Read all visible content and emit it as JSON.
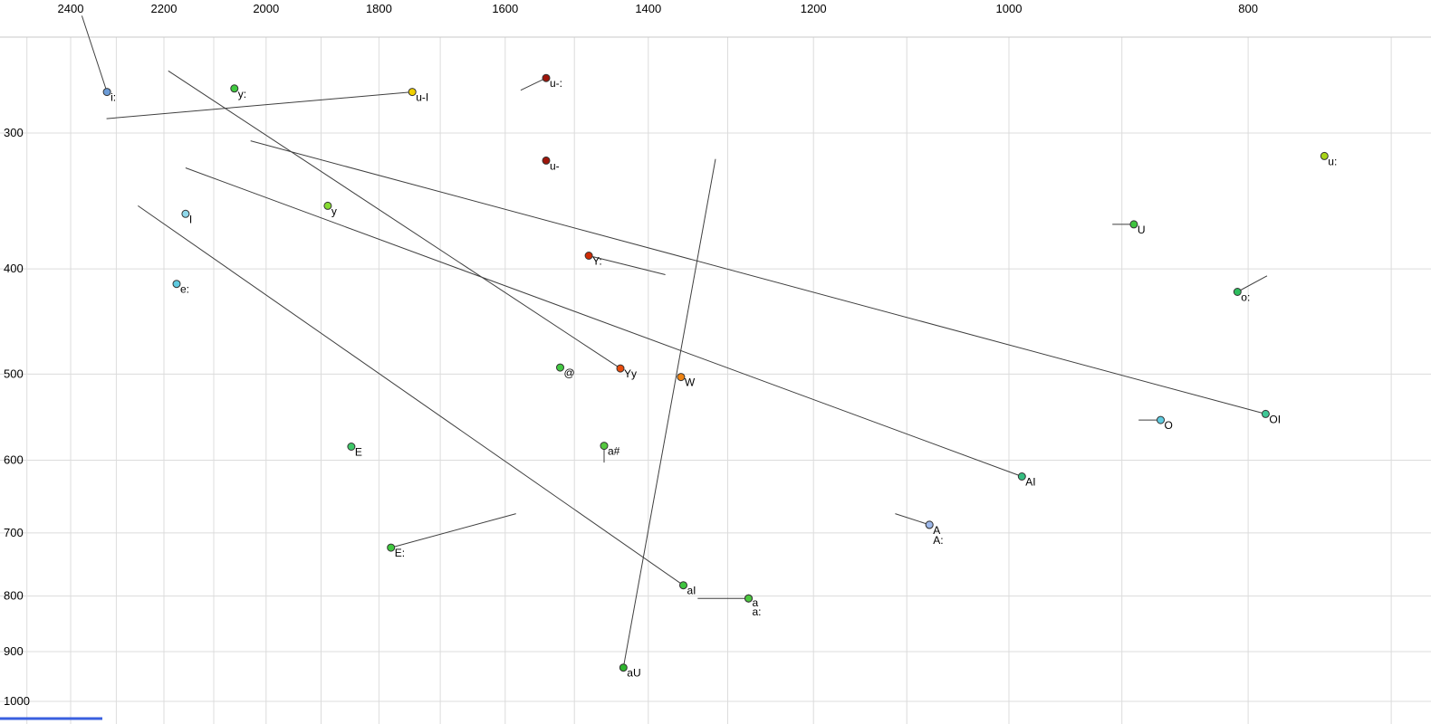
{
  "style": {
    "background": "#ffffff",
    "grid_color": "#dcdcdc",
    "border_color": "#c8c8c8",
    "segment_color": "#3f3f3f",
    "point_stroke": "#333333",
    "axis_text_color": "#000000",
    "bottom_bar_color": "#3a5fdf"
  },
  "bottom_bar": {
    "present": true
  },
  "chart_data": {
    "type": "scatter",
    "description": "Vowel formant plot: F2 (Hz) on reversed log x-axis, F1 (Hz) on reversed log y-axis; labelled vowel tokens (X-SAMPA style) with diphthong/outlier trajectory lines",
    "x_axis": {
      "tick_labels": [
        "2400",
        "2200",
        "2000",
        "1800",
        "1600",
        "1400",
        "1200",
        "1000",
        "800"
      ],
      "tick_values": [
        2400,
        2200,
        2000,
        1800,
        1600,
        1400,
        1200,
        1000,
        800
      ],
      "grid_from": 2500,
      "grid_to": 700,
      "grid_step": 100,
      "scale": "log",
      "reversed": true
    },
    "y_axis": {
      "tick_labels": [
        "300",
        "400",
        "500",
        "600",
        "700",
        "800",
        "900",
        "1000"
      ],
      "tick_values": [
        300,
        400,
        500,
        600,
        700,
        800,
        900,
        1000
      ],
      "grid_from": 300,
      "grid_to": 1000,
      "grid_step": 100,
      "scale": "log",
      "reversed": true
    },
    "points": [
      {
        "label": "i:",
        "f2": 2320,
        "f1": 275,
        "color": "#6b9bd6"
      },
      {
        "label": "y:",
        "f2": 2060,
        "f1": 273,
        "color": "#3fca3f"
      },
      {
        "label": "u-I",
        "f2": 1745,
        "f1": 275,
        "color": "#f0d000"
      },
      {
        "label": "u-:",
        "f2": 1540,
        "f1": 267,
        "color": "#9e150a"
      },
      {
        "label": "u-",
        "f2": 1540,
        "f1": 318,
        "color": "#9e150a"
      },
      {
        "label": "I",
        "f2": 2156,
        "f1": 356,
        "color": "#8fd8ea"
      },
      {
        "label": "y",
        "f2": 1888,
        "f1": 350,
        "color": "#86dc30"
      },
      {
        "label": "e:",
        "f2": 2174,
        "f1": 413,
        "color": "#5fcbe0"
      },
      {
        "label": "Y:",
        "f2": 1480,
        "f1": 389,
        "color": "#cf2b05"
      },
      {
        "label": "@",
        "f2": 1520,
        "f1": 493,
        "color": "#42c842"
      },
      {
        "label": "Yy",
        "f2": 1437,
        "f1": 494,
        "color": "#e84b0c"
      },
      {
        "label": "W",
        "f2": 1358,
        "f1": 503,
        "color": "#ee8312"
      },
      {
        "label": "U",
        "f2": 890,
        "f1": 364,
        "color": "#3fc43f"
      },
      {
        "label": "u:",
        "f2": 745,
        "f1": 315,
        "color": "#a8d417"
      },
      {
        "label": "o:",
        "f2": 808,
        "f1": 420,
        "color": "#2dbd5e"
      },
      {
        "label": "O",
        "f2": 868,
        "f1": 551,
        "color": "#5fcbe0"
      },
      {
        "label": "OI",
        "f2": 787,
        "f1": 544,
        "color": "#3fc896"
      },
      {
        "label": "E",
        "f2": 1847,
        "f1": 583,
        "color": "#3fc869"
      },
      {
        "label": "a#",
        "f2": 1459,
        "f1": 582,
        "color": "#55c83f"
      },
      {
        "label": "AI",
        "f2": 988,
        "f1": 621,
        "color": "#35bd80"
      },
      {
        "label": "A",
        "f2": 1077,
        "f1": 688,
        "color": "#9db8ea"
      },
      {
        "label": "A:",
        "f2": 1077,
        "f1": 688,
        "color": "#9db8ea",
        "ldy": 21
      },
      {
        "label": "E:",
        "f2": 1780,
        "f1": 722,
        "color": "#3fc83f"
      },
      {
        "label": "aU",
        "f2": 1433,
        "f1": 931,
        "color": "#2eb52e"
      },
      {
        "label": "aI",
        "f2": 1355,
        "f1": 782,
        "color": "#3fc43f"
      },
      {
        "label": "a",
        "f2": 1275,
        "f1": 804,
        "color": "#4cc83f",
        "ldy": 9
      },
      {
        "label": "a:",
        "f2": 1275,
        "f1": 804,
        "color": "#4cc83f",
        "ldy": 19
      }
    ],
    "segments": [
      {
        "f2a": 2375,
        "f1a": 234,
        "f2b": 2320,
        "f1b": 275
      },
      {
        "f2a": 2321,
        "f1a": 291,
        "f2b": 1745,
        "f1b": 275
      },
      {
        "f2a": 2191,
        "f1a": 263,
        "f2b": 1437,
        "f1b": 494
      },
      {
        "f2a": 2029,
        "f1a": 305,
        "f2b": 787,
        "f1b": 544
      },
      {
        "f2a": 2156,
        "f1a": 323,
        "f2b": 988,
        "f1b": 621
      },
      {
        "f2a": 2254,
        "f1a": 350,
        "f2b": 1355,
        "f1b": 782
      },
      {
        "f2a": 1315,
        "f1a": 317,
        "f2b": 1433,
        "f1b": 931
      },
      {
        "f2a": 1577,
        "f1a": 274,
        "f2b": 1540,
        "f1b": 267
      },
      {
        "f2a": 1480,
        "f1a": 389,
        "f2b": 1378,
        "f1b": 405
      },
      {
        "f2a": 908,
        "f1a": 364,
        "f2b": 890,
        "f1b": 364
      },
      {
        "f2a": 808,
        "f1a": 420,
        "f2b": 786,
        "f1b": 406
      },
      {
        "f2a": 886,
        "f1a": 551,
        "f2b": 868,
        "f1b": 551
      },
      {
        "f2a": 1112,
        "f1a": 672,
        "f2b": 1077,
        "f1b": 688
      },
      {
        "f2a": 1780,
        "f1a": 722,
        "f2b": 1584,
        "f1b": 672
      },
      {
        "f2a": 1337,
        "f1a": 804,
        "f2b": 1275,
        "f1b": 804
      },
      {
        "f2a": 1459,
        "f1a": 582,
        "f2b": 1459,
        "f1b": 603
      }
    ]
  }
}
